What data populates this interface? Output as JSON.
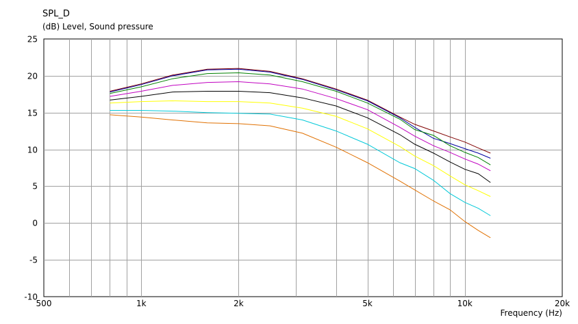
{
  "chart_data": {
    "type": "line",
    "title": "SPL_D",
    "ylabel": "(dB)  Level, Sound pressure",
    "xlabel": "Frequency  (Hz)",
    "x_scale": "log",
    "xlim": [
      500,
      20000
    ],
    "ylim": [
      -10,
      25
    ],
    "grid": true,
    "y_ticks": [
      {
        "value": 25,
        "label": "25"
      },
      {
        "value": 20,
        "label": "20"
      },
      {
        "value": 15,
        "label": "15"
      },
      {
        "value": 10,
        "label": "10"
      },
      {
        "value": 5,
        "label": "5"
      },
      {
        "value": 0,
        "label": "0"
      },
      {
        "value": -5,
        "label": "-5"
      },
      {
        "value": -10,
        "label": "-10"
      }
    ],
    "x_ticks": [
      {
        "value": 500,
        "label": "500"
      },
      {
        "value": 1000,
        "label": "1k"
      },
      {
        "value": 2000,
        "label": "2k"
      },
      {
        "value": 5000,
        "label": "5k"
      },
      {
        "value": 10000,
        "label": "10k"
      },
      {
        "value": 20000,
        "label": "20k"
      }
    ],
    "x_grid": [
      600,
      700,
      800,
      900,
      1000,
      2000,
      3000,
      4000,
      5000,
      6000,
      7000,
      8000,
      9000,
      10000
    ],
    "x": [
      800,
      1000,
      1250,
      1600,
      2000,
      2500,
      3150,
      4000,
      5000,
      6300,
      7000,
      8000,
      9000,
      10000,
      11000,
      12000
    ],
    "series": [
      {
        "color": "#800000",
        "values": [
          17.9,
          18.9,
          20.1,
          20.9,
          21.0,
          20.6,
          19.6,
          18.2,
          16.7,
          14.4,
          13.4,
          12.5,
          11.7,
          11.0,
          10.2,
          9.5
        ]
      },
      {
        "color": "#0000a0",
        "values": [
          17.8,
          18.8,
          20.0,
          20.8,
          20.9,
          20.5,
          19.5,
          18.1,
          16.6,
          14.3,
          13.0,
          11.5,
          10.8,
          10.1,
          9.5,
          8.8
        ]
      },
      {
        "color": "#008000",
        "values": [
          17.6,
          18.5,
          19.6,
          20.3,
          20.4,
          20.1,
          19.2,
          17.9,
          16.3,
          14.1,
          12.7,
          11.9,
          10.5,
          9.6,
          8.9,
          7.9
        ]
      },
      {
        "color": "#c000c0",
        "values": [
          17.2,
          17.9,
          18.7,
          19.1,
          19.2,
          18.9,
          18.2,
          16.9,
          15.4,
          13.0,
          11.8,
          10.5,
          9.6,
          8.7,
          8.0,
          7.1
        ]
      },
      {
        "color": "#000000",
        "values": [
          16.7,
          17.2,
          17.8,
          17.9,
          17.9,
          17.7,
          17.0,
          15.9,
          14.3,
          12.0,
          10.7,
          9.5,
          8.3,
          7.3,
          6.7,
          5.5
        ]
      },
      {
        "color": "#ffff00",
        "values": [
          16.3,
          16.5,
          16.6,
          16.5,
          16.5,
          16.3,
          15.6,
          14.5,
          12.8,
          10.4,
          9.1,
          7.8,
          6.4,
          5.2,
          4.4,
          3.6
        ]
      },
      {
        "color": "#00c8d8",
        "values": [
          15.3,
          15.3,
          15.2,
          15.0,
          14.9,
          14.8,
          14.0,
          12.5,
          10.7,
          8.2,
          7.4,
          5.8,
          4.0,
          2.8,
          2.0,
          1.0
        ]
      },
      {
        "color": "#e07000",
        "values": [
          14.7,
          14.4,
          14.0,
          13.6,
          13.5,
          13.2,
          12.2,
          10.3,
          8.2,
          5.7,
          4.5,
          3.0,
          1.8,
          0.2,
          -1.0,
          -2.0
        ]
      }
    ]
  }
}
